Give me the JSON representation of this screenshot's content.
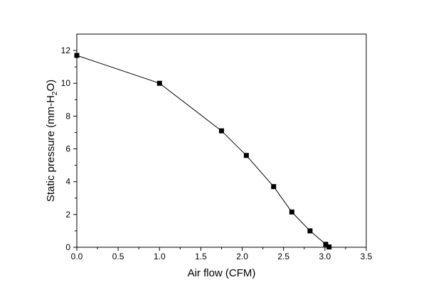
{
  "chart_data": {
    "type": "line",
    "title": "",
    "xlabel": "Air flow (CFM)",
    "ylabel": {
      "prefix": "Static pressure (mm-H",
      "subscript": "2",
      "suffix": "O)"
    },
    "xlim": [
      0,
      3.5
    ],
    "ylim": [
      0,
      13
    ],
    "xticks": [
      0.0,
      0.5,
      1.0,
      1.5,
      2.0,
      2.5,
      3.0,
      3.5
    ],
    "xtick_labels": [
      "0.0",
      "0.5",
      "1.0",
      "1.5",
      "2.0",
      "2.5",
      "3.0",
      "3.5"
    ],
    "yticks": [
      0,
      2,
      4,
      6,
      8,
      10,
      12
    ],
    "ytick_labels": [
      "0",
      "2",
      "4",
      "6",
      "8",
      "10",
      "12"
    ],
    "grid": false,
    "legend": "none",
    "series": [
      {
        "marker": "square",
        "color": "#000000",
        "x": [
          0.0,
          1.0,
          1.75,
          2.05,
          2.38,
          2.6,
          2.82,
          3.01,
          3.05
        ],
        "y": [
          11.7,
          10.0,
          7.1,
          5.6,
          3.7,
          2.15,
          1.0,
          0.18,
          0.02
        ]
      }
    ]
  }
}
